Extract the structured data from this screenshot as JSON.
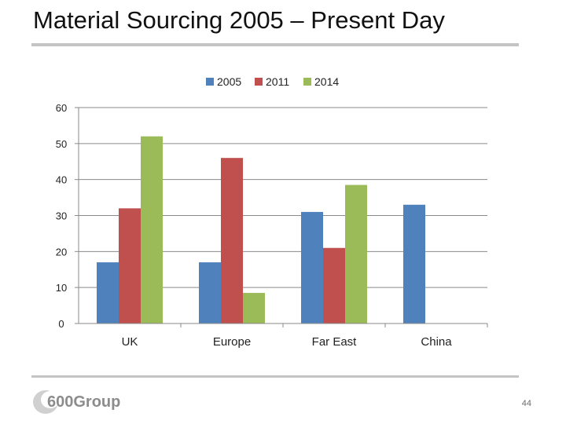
{
  "slide": {
    "title": "Material Sourcing 2005 – Present Day",
    "page_number": "44",
    "logo_text": "600Group"
  },
  "colors": {
    "series_2005": "#4f81bd",
    "series_2011": "#c0504d",
    "series_2014": "#9bbb59"
  },
  "chart_data": {
    "type": "bar",
    "title": "",
    "xlabel": "",
    "ylabel": "",
    "categories": [
      "UK",
      "Europe",
      "Far East",
      "China"
    ],
    "series": [
      {
        "name": "2005",
        "values": [
          17,
          17,
          31,
          33
        ]
      },
      {
        "name": "2011",
        "values": [
          32,
          46,
          21,
          null
        ]
      },
      {
        "name": "2014",
        "values": [
          52,
          8.5,
          38.5,
          null
        ]
      }
    ],
    "ylim": [
      0,
      60
    ],
    "yticks": [
      0,
      10,
      20,
      30,
      40,
      50,
      60
    ],
    "grid": true,
    "legend": "top"
  }
}
